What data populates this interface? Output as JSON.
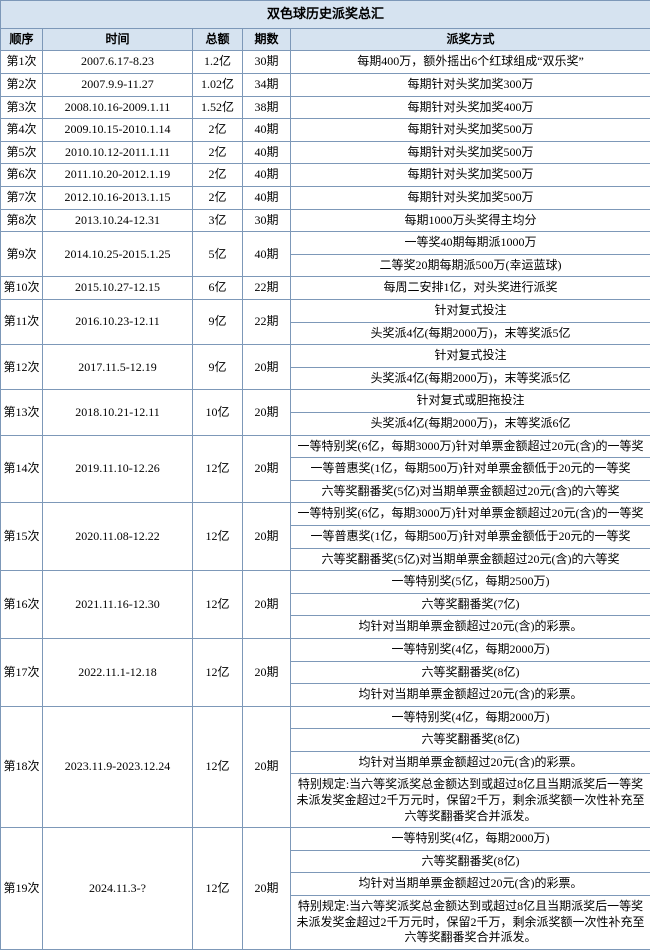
{
  "title": "双色球历史派奖总汇",
  "headers": {
    "seq": "顺序",
    "time": "时间",
    "total": "总额",
    "period": "期数",
    "method": "派奖方式"
  },
  "rows": [
    {
      "seq": "第1次",
      "time": "2007.6.17-8.23",
      "total": "1.2亿",
      "period": "30期",
      "methods": [
        "每期400万，额外摇出6个红球组成“双乐奖”"
      ]
    },
    {
      "seq": "第2次",
      "time": "2007.9.9-11.27",
      "total": "1.02亿",
      "period": "34期",
      "methods": [
        "每期针对头奖加奖300万"
      ]
    },
    {
      "seq": "第3次",
      "time": "2008.10.16-2009.1.11",
      "total": "1.52亿",
      "period": "38期",
      "methods": [
        "每期针对头奖加奖400万"
      ]
    },
    {
      "seq": "第4次",
      "time": "2009.10.15-2010.1.14",
      "total": "2亿",
      "period": "40期",
      "methods": [
        "每期针对头奖加奖500万"
      ]
    },
    {
      "seq": "第5次",
      "time": "2010.10.12-2011.1.11",
      "total": "2亿",
      "period": "40期",
      "methods": [
        "每期针对头奖加奖500万"
      ]
    },
    {
      "seq": "第6次",
      "time": "2011.10.20-2012.1.19",
      "total": "2亿",
      "period": "40期",
      "methods": [
        "每期针对头奖加奖500万"
      ]
    },
    {
      "seq": "第7次",
      "time": "2012.10.16-2013.1.15",
      "total": "2亿",
      "period": "40期",
      "methods": [
        "每期针对头奖加奖500万"
      ]
    },
    {
      "seq": "第8次",
      "time": "2013.10.24-12.31",
      "total": "3亿",
      "period": "30期",
      "methods": [
        "每期1000万头奖得主均分"
      ]
    },
    {
      "seq": "第9次",
      "time": "2014.10.25-2015.1.25",
      "total": "5亿",
      "period": "40期",
      "methods": [
        "一等奖40期每期派1000万",
        "二等奖20期每期派500万(幸运蓝球)"
      ]
    },
    {
      "seq": "第10次",
      "time": "2015.10.27-12.15",
      "total": "6亿",
      "period": "22期",
      "methods": [
        "每周二安排1亿，对头奖进行派奖"
      ]
    },
    {
      "seq": "第11次",
      "time": "2016.10.23-12.11",
      "total": "9亿",
      "period": "22期",
      "methods": [
        "针对复式投注",
        "头奖派4亿(每期2000万)，末等奖派5亿"
      ]
    },
    {
      "seq": "第12次",
      "time": "2017.11.5-12.19",
      "total": "9亿",
      "period": "20期",
      "methods": [
        "针对复式投注",
        "头奖派4亿(每期2000万)，末等奖派5亿"
      ]
    },
    {
      "seq": "第13次",
      "time": "2018.10.21-12.11",
      "total": "10亿",
      "period": "20期",
      "methods": [
        "针对复式或胆拖投注",
        "头奖派4亿(每期2000万)，末等奖派6亿"
      ]
    },
    {
      "seq": "第14次",
      "time": "2019.11.10-12.26",
      "total": "12亿",
      "period": "20期",
      "methods": [
        "一等特别奖(6亿，每期3000万)针对单票金额超过20元(含)的一等奖",
        "一等普惠奖(1亿，每期500万)针对单票金额低于20元的一等奖",
        "六等奖翻番奖(5亿)对当期单票金额超过20元(含)的六等奖"
      ]
    },
    {
      "seq": "第15次",
      "time": "2020.11.08-12.22",
      "total": "12亿",
      "period": "20期",
      "methods": [
        "一等特别奖(6亿，每期3000万)针对单票金额超过20元(含)的一等奖",
        "一等普惠奖(1亿，每期500万)针对单票金额低于20元的一等奖",
        "六等奖翻番奖(5亿)对当期单票金额超过20元(含)的六等奖"
      ]
    },
    {
      "seq": "第16次",
      "time": "2021.11.16-12.30",
      "total": "12亿",
      "period": "20期",
      "methods": [
        "一等特别奖(5亿，每期2500万)",
        "六等奖翻番奖(7亿)",
        "均针对当期单票金额超过20元(含)的彩票。"
      ]
    },
    {
      "seq": "第17次",
      "time": "2022.11.1-12.18",
      "total": "12亿",
      "period": "20期",
      "methods": [
        "一等特别奖(4亿，每期2000万)",
        "六等奖翻番奖(8亿)",
        "均针对当期单票金额超过20元(含)的彩票。"
      ]
    },
    {
      "seq": "第18次",
      "time": "2023.11.9-2023.12.24",
      "total": "12亿",
      "period": "20期",
      "methods": [
        "一等特别奖(4亿，每期2000万)",
        "六等奖翻番奖(8亿)",
        "均针对当期单票金额超过20元(含)的彩票。",
        "特别规定:当六等奖派奖总金额达到或超过8亿且当期派奖后一等奖未派发奖金超过2千万元时，保留2千万，剩余派奖额一次性补充至六等奖翻番奖合并派发。"
      ]
    },
    {
      "seq": "第19次",
      "time": "2024.11.3-?",
      "total": "12亿",
      "period": "20期",
      "methods": [
        "一等特别奖(4亿，每期2000万)",
        "六等奖翻番奖(8亿)",
        "均针对当期单票金额超过20元(含)的彩票。",
        "特别规定:当六等奖派奖总金额达到或超过8亿且当期派奖后一等奖未派发奖金超过2千万元时，保留2千万，剩余派奖额一次性补充至六等奖翻番奖合并派发。"
      ]
    }
  ]
}
